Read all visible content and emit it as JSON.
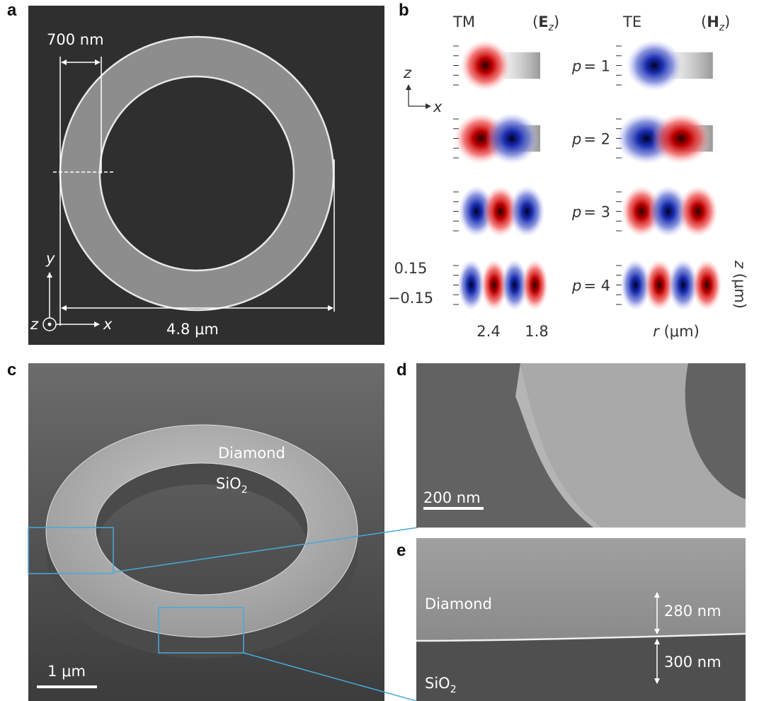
{
  "panels": {
    "a": {
      "label": "a",
      "scale_width": "700 nm",
      "diameter": "4.8 μm",
      "axes": {
        "x": "x",
        "y": "y",
        "z": "z"
      }
    },
    "b": {
      "label": "b",
      "tm": {
        "name": "TM",
        "field": {
          "open": "(",
          "symbol": "E",
          "sub": "z",
          "close": ")"
        }
      },
      "te": {
        "name": "TE",
        "field": {
          "open": "(",
          "symbol": "H",
          "sub": "z",
          "close": ")"
        }
      },
      "mode_labels": [
        {
          "var": "p",
          "eq": "= 1"
        },
        {
          "var": "p",
          "eq": "= 2"
        },
        {
          "var": "p",
          "eq": "= 3"
        },
        {
          "var": "p",
          "eq": "= 4"
        }
      ],
      "axes": {
        "z": "z",
        "x": "x"
      },
      "z_ticks": [
        "0.15",
        "−0.15"
      ],
      "r_ticks": [
        "2.4",
        "1.8"
      ],
      "r_label": {
        "symbol": "r",
        "unit": "(μm)"
      },
      "z_label": {
        "symbol": "z",
        "unit": "(μm)"
      }
    },
    "c": {
      "label": "c",
      "top_layer": "Diamond",
      "bottom_layer": {
        "base": "SiO",
        "sub": "2"
      },
      "scale": "1 μm"
    },
    "d": {
      "label": "d",
      "scale": "200 nm"
    },
    "e": {
      "label": "e",
      "top_layer": "Diamond",
      "bottom_layer": {
        "base": "SiO",
        "sub": "2"
      },
      "top_thickness": "280 nm",
      "bottom_thickness": "300 nm"
    }
  }
}
